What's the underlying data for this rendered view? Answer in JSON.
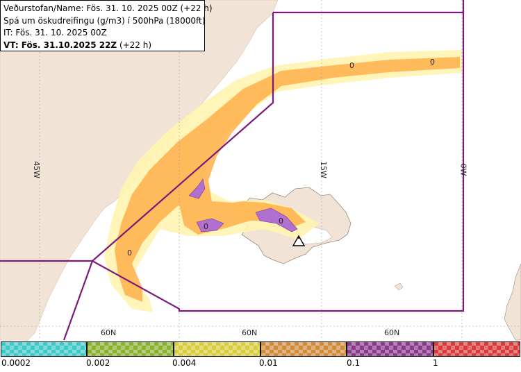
{
  "header": {
    "line1": "Veðurstofan/Name: Fös. 31. 10. 2025 00Z (+22 h)",
    "line2": "Spá um öskudreifingu (g/m3) í 500hPa (18000ft)",
    "line3": "IT: Fös. 31. 10. 2025 00Z",
    "line4_bold": "VT: Fös. 31.10.2025 22Z",
    "line4_rest": " (+22 h)"
  },
  "grid": {
    "lon_labels": [
      "45W",
      "15W",
      "0W"
    ],
    "lat_labels": [
      "60N",
      "60N",
      "60N"
    ]
  },
  "contour_labels": [
    "0",
    "0",
    "0",
    "0",
    "0"
  ],
  "volcano": {
    "icon": "volcano-triangle-icon"
  },
  "legend": {
    "labels": [
      "0.0002",
      "0.002",
      "0.004",
      "0.01",
      "0.1",
      "1"
    ],
    "colors": [
      "#3ec8c8",
      "#8ab02e",
      "#d8cc3a",
      "#d08a3a",
      "#8a3a8a",
      "#d83a3a"
    ]
  },
  "colors": {
    "land": "#f1e3d6",
    "sea": "#ffffff",
    "fir_boundary": "#7a1a7a",
    "ash_low": "#fff0a0",
    "ash_mid": "#ffb04a",
    "ash_high": "#b070d0"
  }
}
